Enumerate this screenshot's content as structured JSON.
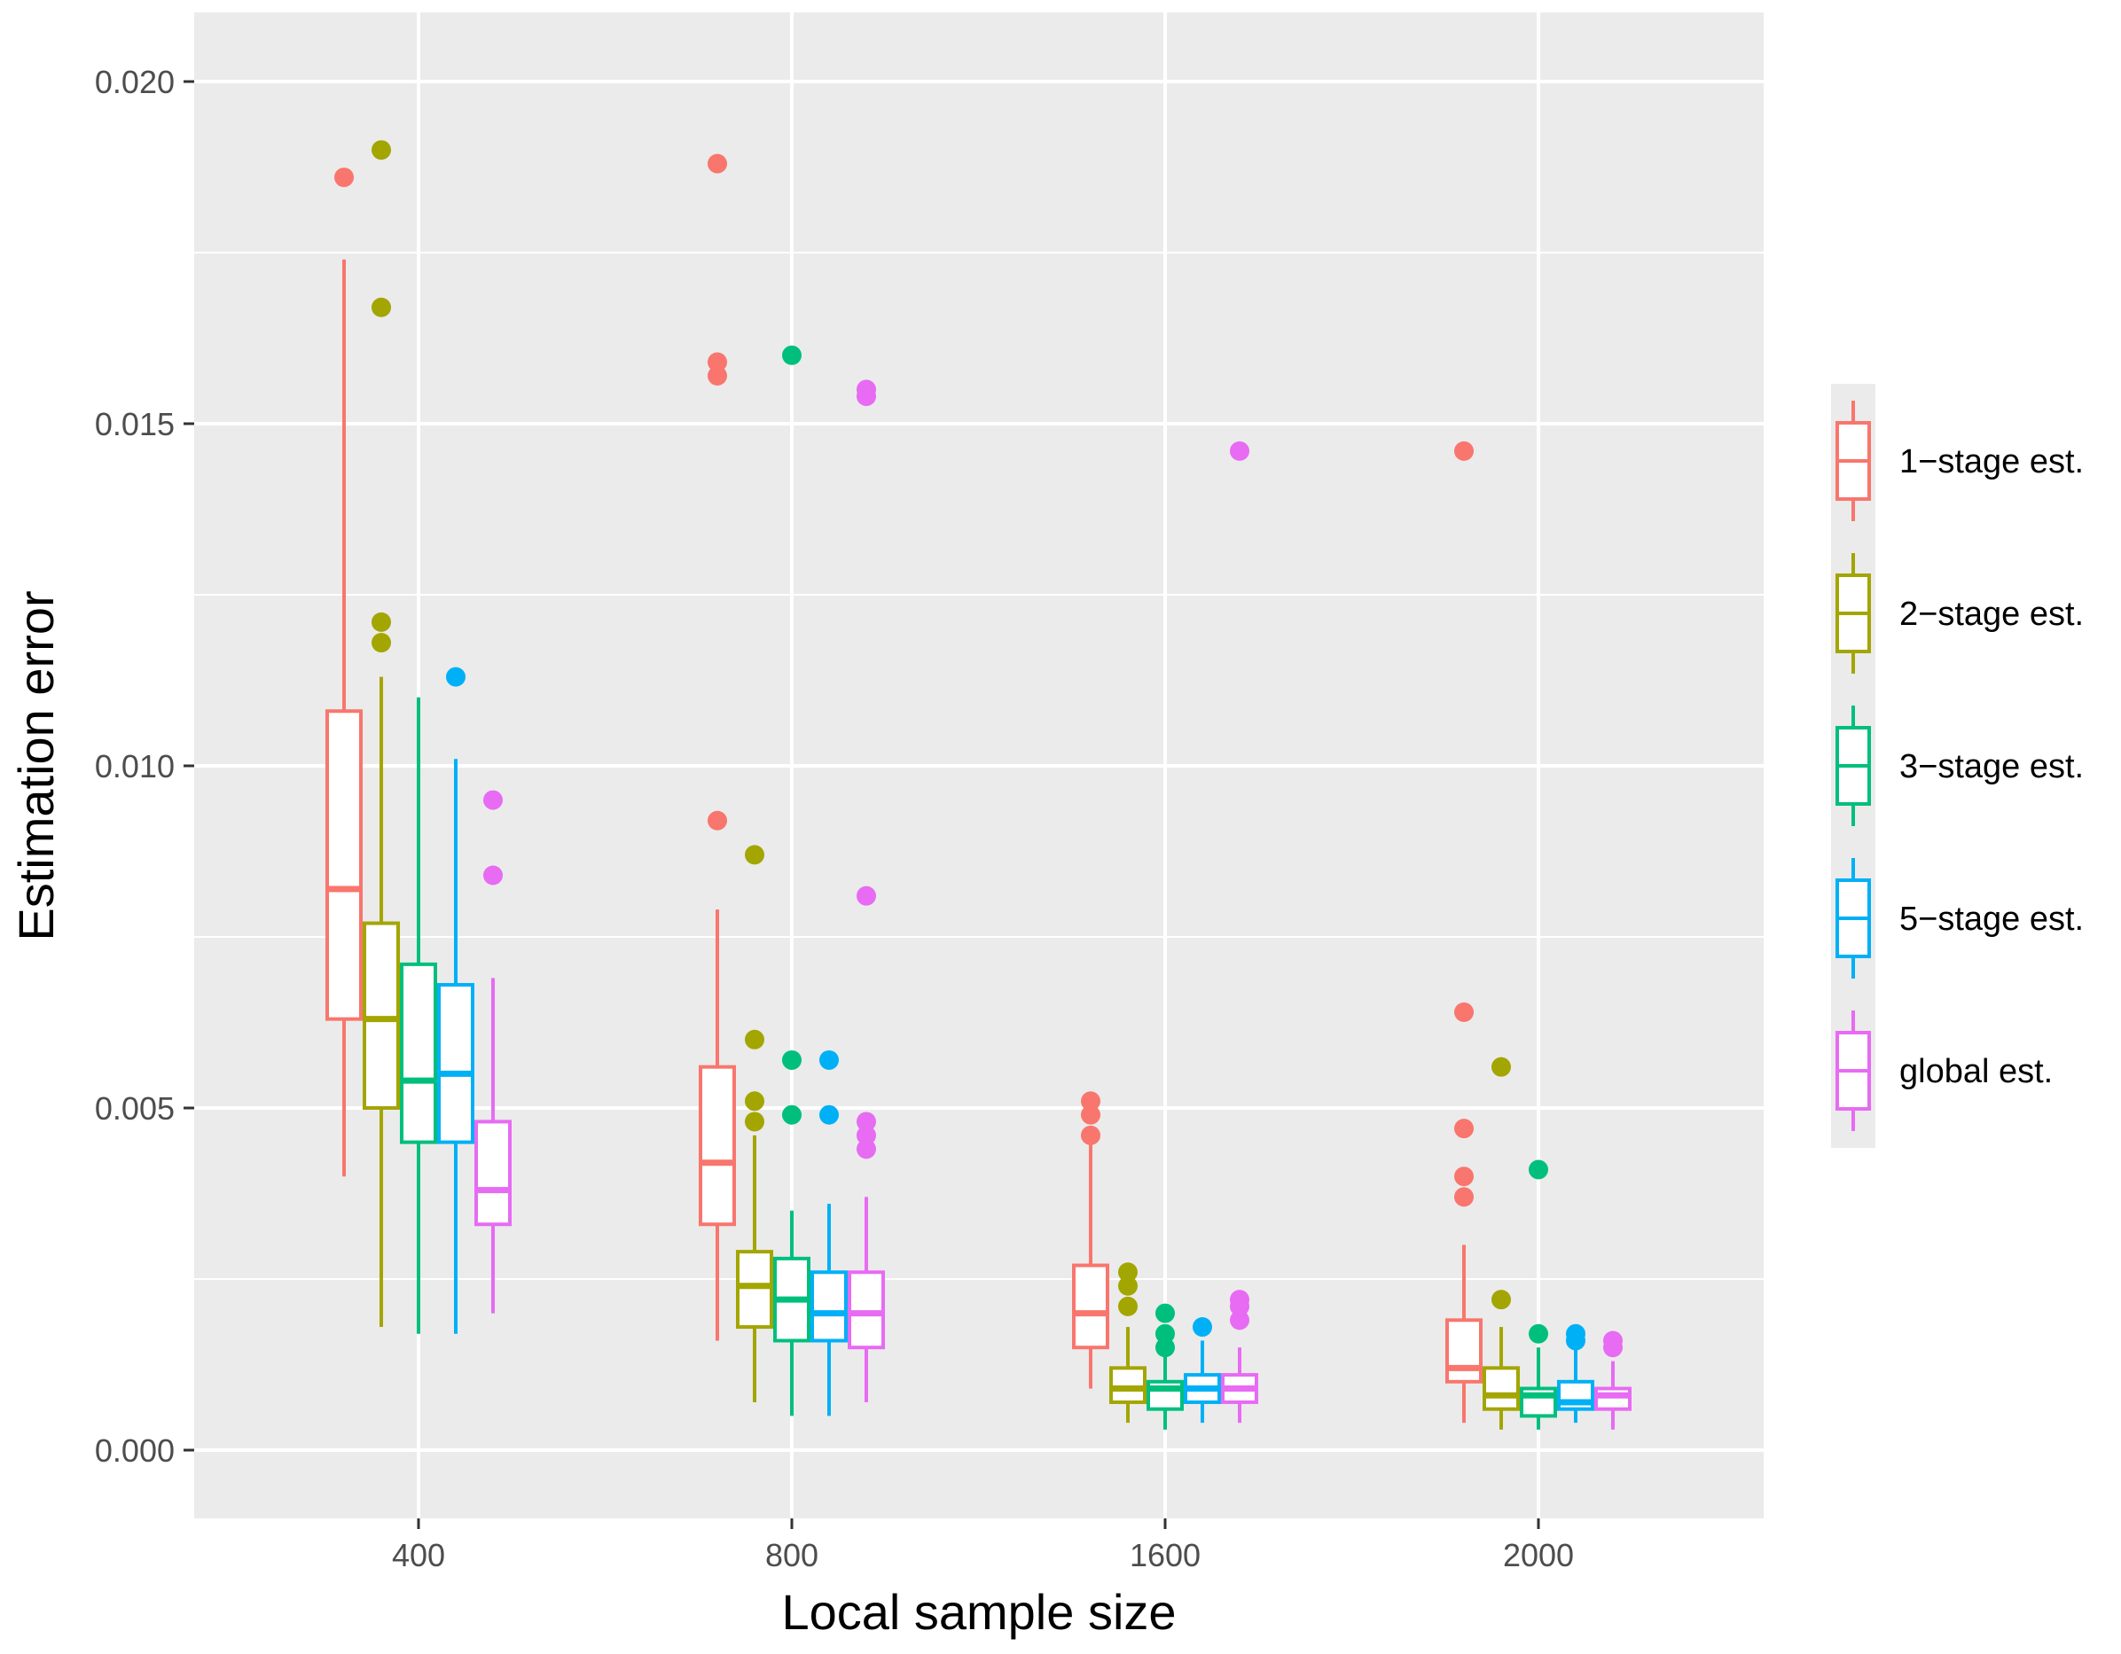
{
  "chart_data": {
    "type": "boxplot",
    "xlabel": "Local sample size",
    "ylabel": "Estimation error",
    "categories": [
      "400",
      "800",
      "1600",
      "2000"
    ],
    "ylim": [
      -0.001,
      0.0211
    ],
    "y_ticks": [
      0.0,
      0.005,
      0.01,
      0.015,
      0.02
    ],
    "y_tick_labels": [
      "0.000",
      "0.005",
      "0.010",
      "0.015",
      "0.020"
    ],
    "grid": true,
    "legend_position": "right",
    "series": [
      {
        "name": "1−stage est.",
        "color": "#F8766D",
        "boxes": [
          {
            "whisker_low": 0.004,
            "q1": 0.0063,
            "median": 0.0082,
            "q3": 0.0108,
            "whisker_high": 0.0174,
            "outliers": [
              0.0186
            ]
          },
          {
            "whisker_low": 0.0016,
            "q1": 0.0033,
            "median": 0.0042,
            "q3": 0.0056,
            "whisker_high": 0.0079,
            "outliers": [
              0.0092,
              0.0157,
              0.0159,
              0.0188
            ]
          },
          {
            "whisker_low": 0.0009,
            "q1": 0.0015,
            "median": 0.002,
            "q3": 0.0027,
            "whisker_high": 0.0045,
            "outliers": [
              0.0046,
              0.0049,
              0.0051
            ]
          },
          {
            "whisker_low": 0.0004,
            "q1": 0.001,
            "median": 0.0012,
            "q3": 0.0019,
            "whisker_high": 0.003,
            "outliers": [
              0.0037,
              0.004,
              0.0047,
              0.0064,
              0.0146
            ]
          }
        ]
      },
      {
        "name": "2−stage est.",
        "color": "#A3A500",
        "boxes": [
          {
            "whisker_low": 0.0018,
            "q1": 0.005,
            "median": 0.0063,
            "q3": 0.0077,
            "whisker_high": 0.0113,
            "outliers": [
              0.0118,
              0.0121,
              0.0167,
              0.019
            ]
          },
          {
            "whisker_low": 0.0007,
            "q1": 0.0018,
            "median": 0.0024,
            "q3": 0.0029,
            "whisker_high": 0.0046,
            "outliers": [
              0.0048,
              0.0051,
              0.006,
              0.0087
            ]
          },
          {
            "whisker_low": 0.0004,
            "q1": 0.0007,
            "median": 0.0009,
            "q3": 0.0012,
            "whisker_high": 0.0018,
            "outliers": [
              0.0021,
              0.0024,
              0.0026
            ]
          },
          {
            "whisker_low": 0.0003,
            "q1": 0.0006,
            "median": 0.0008,
            "q3": 0.0012,
            "whisker_high": 0.0018,
            "outliers": [
              0.0022,
              0.0056
            ]
          }
        ]
      },
      {
        "name": "3−stage est.",
        "color": "#00BF7D",
        "boxes": [
          {
            "whisker_low": 0.0017,
            "q1": 0.0045,
            "median": 0.0054,
            "q3": 0.0071,
            "whisker_high": 0.011,
            "outliers": []
          },
          {
            "whisker_low": 0.0005,
            "q1": 0.0016,
            "median": 0.0022,
            "q3": 0.0028,
            "whisker_high": 0.0035,
            "outliers": [
              0.0049,
              0.0057,
              0.016
            ]
          },
          {
            "whisker_low": 0.0003,
            "q1": 0.0006,
            "median": 0.0009,
            "q3": 0.001,
            "whisker_high": 0.0015,
            "outliers": [
              0.0015,
              0.0017,
              0.002
            ]
          },
          {
            "whisker_low": 0.0003,
            "q1": 0.0005,
            "median": 0.0008,
            "q3": 0.0009,
            "whisker_high": 0.0015,
            "outliers": [
              0.0017,
              0.0041
            ]
          }
        ]
      },
      {
        "name": "5−stage est.",
        "color": "#00B0F6",
        "boxes": [
          {
            "whisker_low": 0.0017,
            "q1": 0.0045,
            "median": 0.0055,
            "q3": 0.0068,
            "whisker_high": 0.0101,
            "outliers": [
              0.0113
            ]
          },
          {
            "whisker_low": 0.0005,
            "q1": 0.0016,
            "median": 0.002,
            "q3": 0.0026,
            "whisker_high": 0.0036,
            "outliers": [
              0.0049,
              0.0057
            ]
          },
          {
            "whisker_low": 0.0004,
            "q1": 0.0007,
            "median": 0.0009,
            "q3": 0.0011,
            "whisker_high": 0.0016,
            "outliers": [
              0.0018
            ]
          },
          {
            "whisker_low": 0.0004,
            "q1": 0.0006,
            "median": 0.0007,
            "q3": 0.001,
            "whisker_high": 0.0015,
            "outliers": [
              0.0016,
              0.0017
            ]
          }
        ]
      },
      {
        "name": "global est.",
        "color": "#E76BF3",
        "boxes": [
          {
            "whisker_low": 0.002,
            "q1": 0.0033,
            "median": 0.0038,
            "q3": 0.0048,
            "whisker_high": 0.0069,
            "outliers": [
              0.0084,
              0.0095
            ]
          },
          {
            "whisker_low": 0.0007,
            "q1": 0.0015,
            "median": 0.002,
            "q3": 0.0026,
            "whisker_high": 0.0037,
            "outliers": [
              0.0044,
              0.0046,
              0.0048,
              0.0081,
              0.0154,
              0.0155
            ]
          },
          {
            "whisker_low": 0.0004,
            "q1": 0.0007,
            "median": 0.0009,
            "q3": 0.0011,
            "whisker_high": 0.0015,
            "outliers": [
              0.0019,
              0.0021,
              0.0022,
              0.0146
            ]
          },
          {
            "whisker_low": 0.0003,
            "q1": 0.0006,
            "median": 0.0008,
            "q3": 0.0009,
            "whisker_high": 0.0013,
            "outliers": [
              0.0015,
              0.0016
            ]
          }
        ]
      }
    ]
  }
}
